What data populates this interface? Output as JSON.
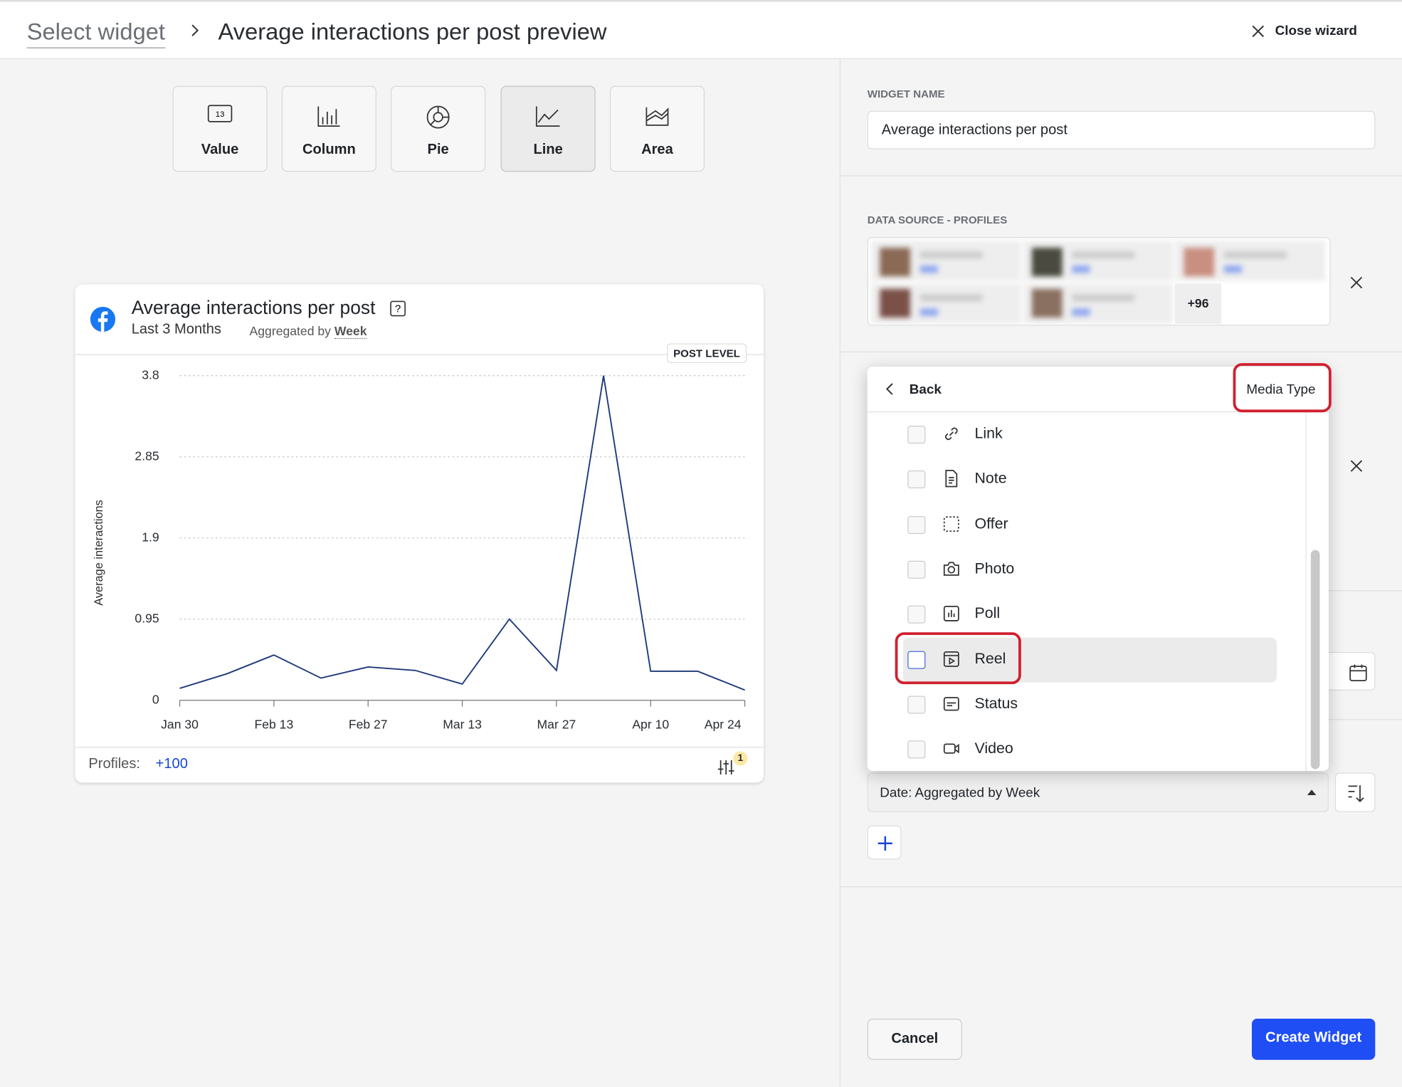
{
  "header": {
    "breadcrumb": "Select widget",
    "title": "Average interactions per post preview",
    "close": "Close wizard"
  },
  "chart_types": [
    "Value",
    "Column",
    "Pie",
    "Line",
    "Area"
  ],
  "value_icon": "13",
  "widget": {
    "title": "Average interactions per post",
    "period": "Last 3 Months",
    "aggregated_label": "Aggregated by",
    "aggregated_value": "Week",
    "level": "POST LEVEL",
    "profiles_label": "Profiles:",
    "profiles_count": "+100",
    "filter_count": "1"
  },
  "chart_data": {
    "type": "line",
    "y_label": "Average interactions",
    "categories": [
      "Jan 30",
      null,
      "Feb 13",
      null,
      "Feb 27",
      null,
      "Mar 13",
      null,
      "Mar 27",
      null,
      "Apr 10",
      null,
      "Apr 24"
    ],
    "values": [
      0.14,
      0.31,
      0.53,
      0.26,
      0.39,
      0.35,
      0.19,
      0.95,
      0.35,
      3.8,
      0.34,
      0.34,
      0.12
    ],
    "color": "#1e3a7b",
    "ylim": [
      0,
      3.8
    ],
    "yticks": [
      0,
      0.95,
      1.9,
      2.85,
      3.8
    ],
    "grid": true
  },
  "panel": {
    "name_label": "WIDGET NAME",
    "name_value": "Average interactions per post",
    "source_label": "DATA SOURCE - PROFILES",
    "more_profiles": "+96",
    "dropdown": {
      "back": "Back",
      "title": "Media Type",
      "options": [
        "Link",
        "Note",
        "Offer",
        "Photo",
        "Poll",
        "Reel",
        "Status",
        "Video"
      ]
    },
    "sort_field": "Date: Aggregated by Week",
    "cancel": "Cancel",
    "create": "Create Widget"
  }
}
